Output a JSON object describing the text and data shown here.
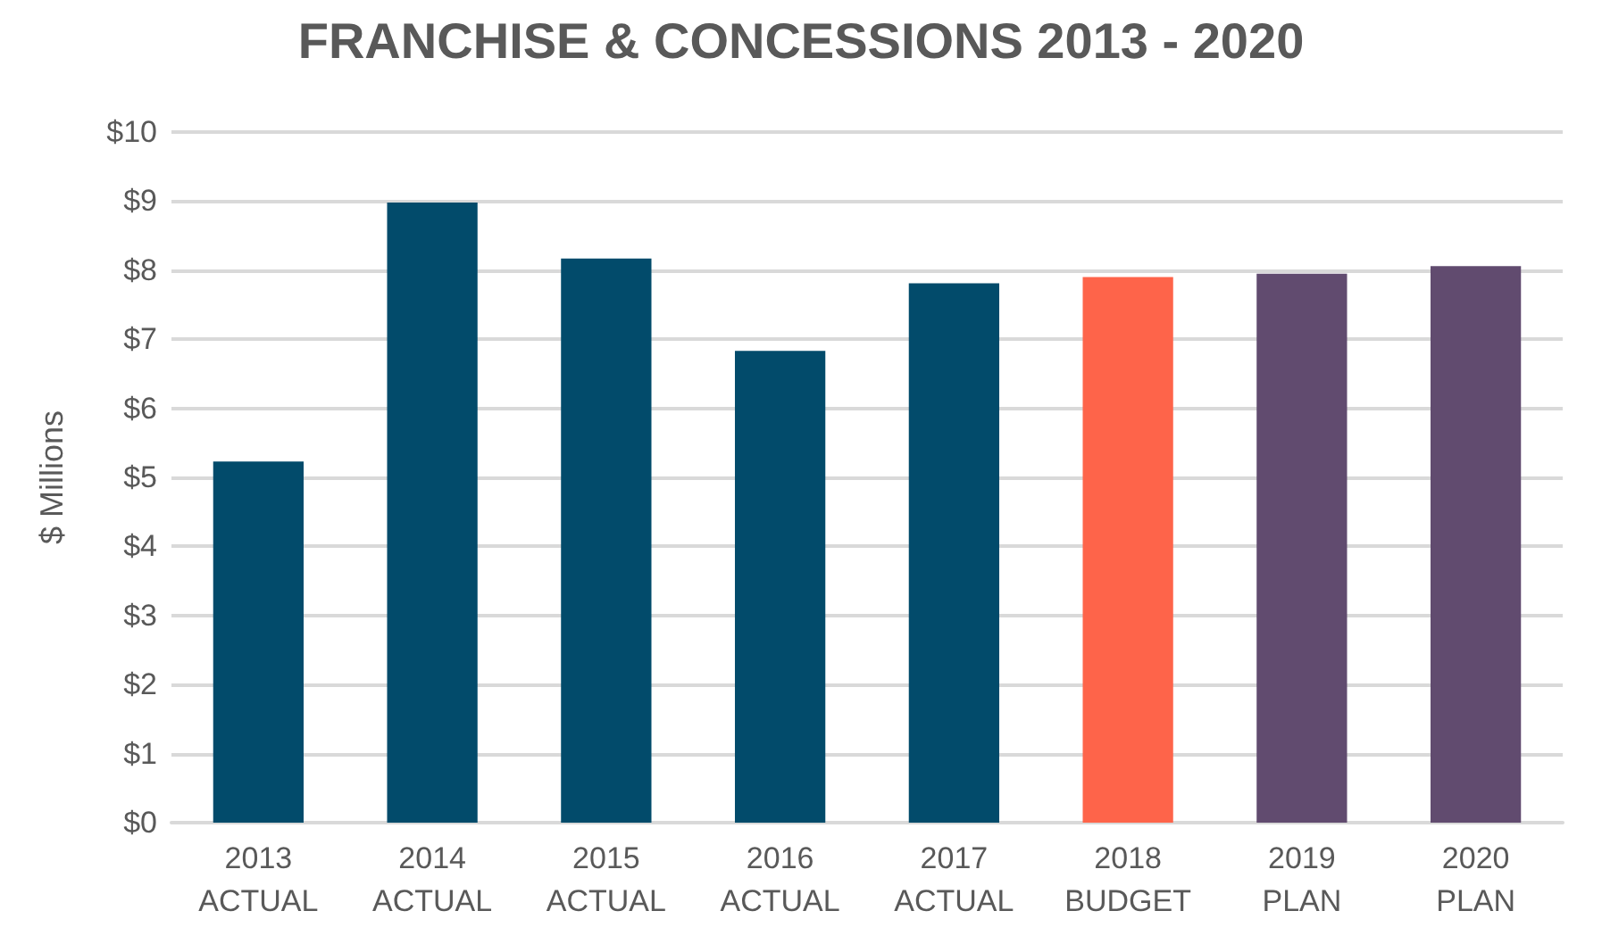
{
  "chart_data": {
    "type": "bar",
    "title": "FRANCHISE & CONCESSIONS 2013 - 2020",
    "ylabel": "$ Millions",
    "categories": [
      "2013\nACTUAL",
      "2014\nACTUAL",
      "2015\nACTUAL",
      "2016\nACTUAL",
      "2017\nACTUAL",
      "2018\nBUDGET",
      "2019\nPLAN",
      "2020\nPLAN"
    ],
    "values": [
      5.23,
      8.98,
      8.17,
      6.83,
      7.81,
      7.9,
      7.95,
      8.06
    ],
    "colors": [
      "#024b6b",
      "#024b6b",
      "#024b6b",
      "#024b6b",
      "#024b6b",
      "#fe644a",
      "#614b6f",
      "#614b6f"
    ],
    "ylim": [
      0,
      10
    ],
    "yticks": [
      {
        "value": 0,
        "label": "$0"
      },
      {
        "value": 1,
        "label": "$1"
      },
      {
        "value": 2,
        "label": "$2"
      },
      {
        "value": 3,
        "label": "$3"
      },
      {
        "value": 4,
        "label": "$4"
      },
      {
        "value": 5,
        "label": "$5"
      },
      {
        "value": 6,
        "label": "$6"
      },
      {
        "value": 7,
        "label": "$7"
      },
      {
        "value": 8,
        "label": "$8"
      },
      {
        "value": 9,
        "label": "$9"
      },
      {
        "value": 10,
        "label": "$10"
      }
    ],
    "grid": "y"
  }
}
